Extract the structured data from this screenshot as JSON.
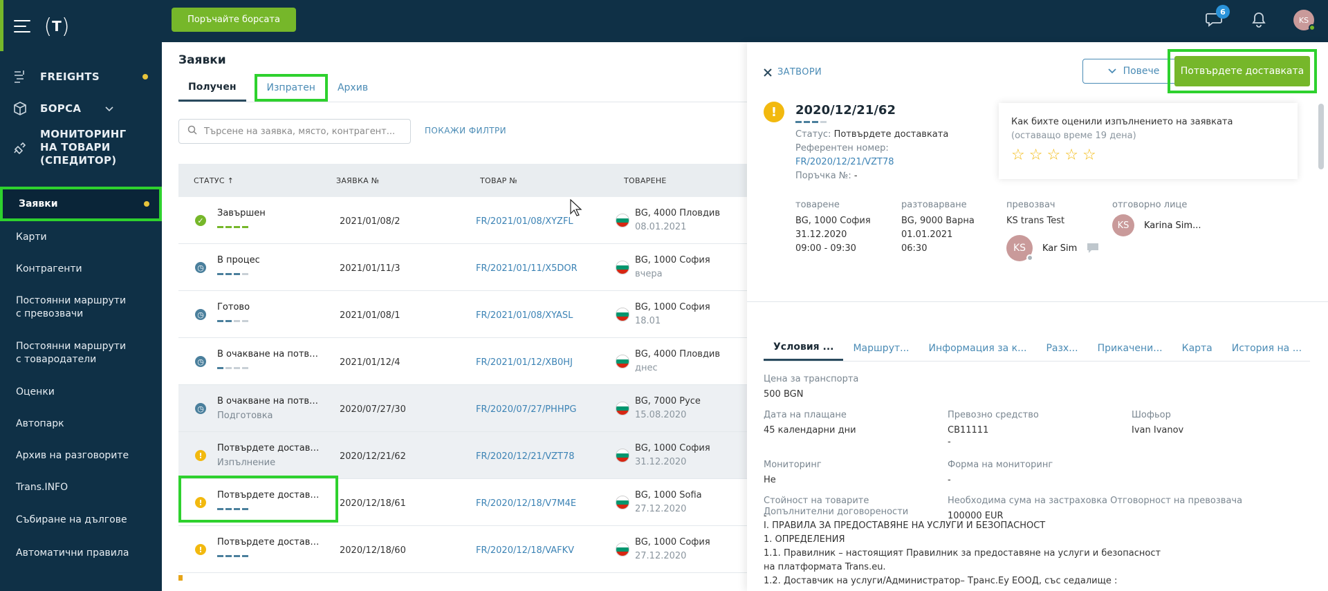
{
  "brand": {
    "logo_text": "T"
  },
  "sidebar": {
    "top_items": [
      {
        "label": "FREIGHTS",
        "icon": "route-icon"
      },
      {
        "label": "БОРСА",
        "icon": "box-icon"
      },
      {
        "label": "МОНИТОРИНГ НА ТОВАРИ (СПЕДИТОР)",
        "icon": "satellite-icon"
      }
    ],
    "links": [
      {
        "label": "Заявки",
        "active": true
      },
      {
        "label": "Карти"
      },
      {
        "label": "Контрагенти"
      },
      {
        "label": "Постоянни маршрути с превозвачи"
      },
      {
        "label": "Постоянни маршрути с товародатели"
      },
      {
        "label": "Оценки"
      },
      {
        "label": "Автопарк"
      },
      {
        "label": "Архив на разговорите"
      },
      {
        "label": "Trans.INFO"
      },
      {
        "label": "Събиране на дългове"
      },
      {
        "label": "Автоматични правила"
      }
    ]
  },
  "topbar": {
    "bourse_button": "Поръчайте борсата",
    "chat_badge": "6",
    "avatar_initials": "KS"
  },
  "main": {
    "title": "Заявки",
    "tabs": [
      "Получен",
      "Изпратен",
      "Архив"
    ],
    "search_placeholder": "Търсене на заявка, място, контрагент...",
    "filters_link": "ПОКАЖИ ФИЛТРИ",
    "columns": [
      "СТАТУС ↑",
      "ЗАЯВКА №",
      "ТОВАР №",
      "ТОВАРЕНЕ"
    ],
    "rows": [
      {
        "status": "Завършен",
        "sub": "",
        "icon": "check",
        "num": "2021/01/08/2",
        "cargo": "FR/2021/01/08/XYZFL",
        "load": "BG, 4000 Пловдив",
        "date": "08.01.2021"
      },
      {
        "status": "В процес",
        "sub": "",
        "icon": "clock",
        "num": "2021/01/11/3",
        "cargo": "FR/2021/01/11/X5DOR",
        "load": "BG, 1000 София",
        "date": "вчера"
      },
      {
        "status": "Готово",
        "sub": "",
        "icon": "clock",
        "num": "2021/01/08/1",
        "cargo": "FR/2021/01/08/XYASL",
        "load": "BG, 1000 София",
        "date": "18.01"
      },
      {
        "status": "В очакване на потвъ...",
        "sub": "",
        "icon": "clock",
        "num": "2021/01/12/4",
        "cargo": "FR/2021/01/12/XB0HJ",
        "load": "BG, 4000 Пловдив",
        "date": "днес"
      },
      {
        "status": "В очакване на потвъ...",
        "sub": "Подготовка",
        "icon": "clock",
        "num": "2020/07/27/30",
        "cargo": "FR/2020/07/27/PHHPG",
        "load": "BG, 7000 Русе",
        "date": "15.08.2020"
      },
      {
        "status": "Потвърдете доставк...",
        "sub": "Изпълнение",
        "icon": "warn",
        "num": "2020/12/21/62",
        "cargo": "FR/2020/12/21/VZT78",
        "load": "BG, 1000 София",
        "date": "31.12.2020"
      },
      {
        "status": "Потвърдете доставк...",
        "sub": "",
        "icon": "warn",
        "num": "2020/12/18/61",
        "cargo": "FR/2020/12/18/V7M4E",
        "load": "BG, 1000 Sofia",
        "date": "27.12.2020"
      },
      {
        "status": "Потвърдете доставк...",
        "sub": "",
        "icon": "warn",
        "num": "2020/12/18/60",
        "cargo": "FR/2020/12/18/VAFKV",
        "load": "BG, 1000 София",
        "date": "27.12.2020"
      }
    ]
  },
  "panel": {
    "close_label": "ЗАТВОРИ",
    "more_label": "Повече",
    "confirm_label": "Потвърдете доставката",
    "order_number": "2020/12/21/62",
    "status_label": "Статус:",
    "status_value": "Потвърдете доставката",
    "ref_label": "Референтен номер:",
    "ref_value": "FR/2020/12/21/VZT78",
    "order_label": "Поръчка №:",
    "order_value": "-",
    "rating_question": "Как бихте оценили изпълнението на заявката",
    "rating_remaining": "(оставащо време 19 дена)",
    "loading": {
      "label": "товарене",
      "place": "BG, 1000 София",
      "date": "31.12.2020",
      "time": "09:00 - 09:30"
    },
    "unloading": {
      "label": "разтоварване",
      "place": "BG, 9000 Варна",
      "date": "01.01.2021",
      "time": "06:30"
    },
    "carrier": {
      "label": "превозвач",
      "name": "KS trans Test",
      "person_initials": "KS",
      "person_name": "Kar Sim"
    },
    "responsible": {
      "label": "отговорно лице",
      "initials": "KS",
      "name": "Karina Sim..."
    },
    "tabs": [
      "Условия ...",
      "Маршрут...",
      "Информация за к...",
      "Разх...",
      "Прикачени...",
      "Карта",
      "История на ..."
    ],
    "price_label": "Цена за транспорта",
    "price_value": "500 BGN",
    "pay_label": "Дата на плащане",
    "pay_value": "45 календарни дни",
    "vehicle_label": "Превозно средство",
    "vehicle_value": "СВ11111",
    "vehicle_value2": "-",
    "driver_label": "Шофьор",
    "driver_value": "Ivan Ivanov",
    "monitoring_label": "Мониторинг",
    "monitoring_value": "Не",
    "monitoring_form_label": "Форма на мониторинг",
    "monitoring_form_value": "-",
    "goods_value_label": "Стойност на товарите",
    "goods_value_value": "-",
    "insurance_label": "Необходима сума на застраховка Отговорност на превозвача",
    "insurance_value": "100000 EUR",
    "extra_label": "Допълнителни договорености",
    "extra_lines": [
      "I. ПРАВИЛА ЗА ПРЕДОСТАВЯНЕ НА УСЛУГИ И БЕЗОПАСНОСТ",
      "1. ОПРЕДЕЛЕНИЯ",
      "1.1. Правилник – настоящият Правилник за предоставяне на услуги и безопасност",
      "на платформата Trans.eu.",
      "1.2. Доставчик на услуги/Администратор– Транс.Еу ЕООД, със седалище :"
    ]
  },
  "colors": {
    "sidebar": "#0f3046",
    "accent": "#76b72a",
    "highlight": "#2ed12e",
    "link": "#4a8bb5",
    "warning": "#f2b90f"
  }
}
